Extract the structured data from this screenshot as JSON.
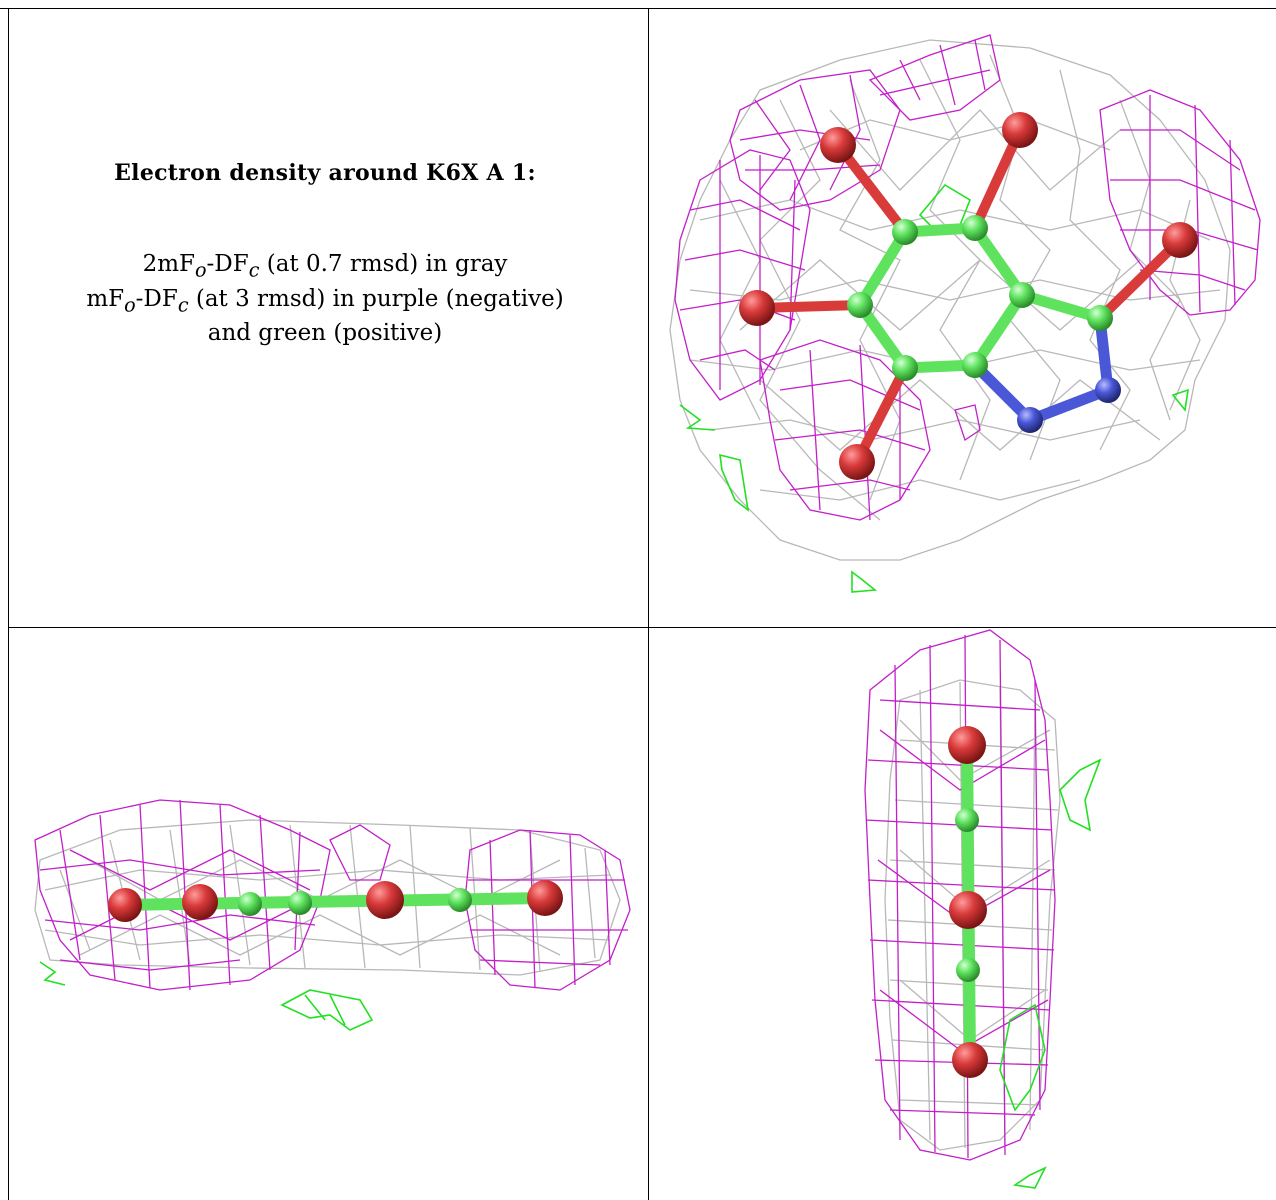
{
  "caption": {
    "title": "Electron density around K6X A 1:",
    "line1_prefix": "2mF",
    "line1_sub1": "o",
    "line1_mid": "-DF",
    "line1_sub2": "c",
    "line1_suffix": " (at 0.7 rmsd) in gray",
    "line2_prefix": "mF",
    "line2_sub1": "o",
    "line2_mid": "-DF",
    "line2_sub2": "c",
    "line2_suffix": " (at 3 rmsd) in purple (negative)",
    "line3": "and green (positive)"
  },
  "colors": {
    "gray_mesh": "#b8b8b8",
    "purple_mesh": "#c21fc9",
    "green_mesh": "#22e022",
    "carbon": "#5fe35f",
    "oxygen": "#d93a3a",
    "nitrogen": "#4a58d8"
  }
}
